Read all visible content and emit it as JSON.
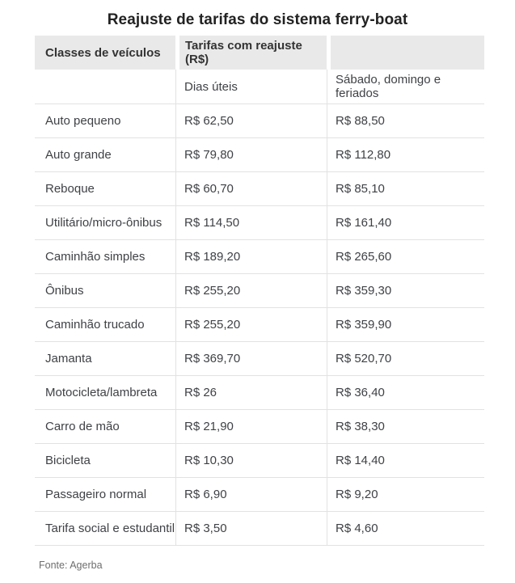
{
  "chart_data": {
    "type": "table",
    "title": "Reajuste de tarifas do sistema ferry-boat",
    "header": {
      "col1": "Classes de veículos",
      "col2": "Tarifas com reajuste (R$)",
      "col3": ""
    },
    "subheader": {
      "col1": "",
      "col2": "Dias úteis",
      "col3": "Sábado, domingo e feriados"
    },
    "columns": [
      "Classes de veículos",
      "Dias úteis",
      "Sábado, domingo e feriados"
    ],
    "rows": [
      {
        "vehicle": "Auto pequeno",
        "weekday": "R$ 62,50",
        "weekend": "R$ 88,50"
      },
      {
        "vehicle": "Auto grande",
        "weekday": "R$ 79,80",
        "weekend": "R$ 112,80"
      },
      {
        "vehicle": "Reboque",
        "weekday": "R$ 60,70",
        "weekend": "R$ 85,10"
      },
      {
        "vehicle": "Utilitário/micro-ônibus",
        "weekday": "R$ 114,50",
        "weekend": "R$ 161,40"
      },
      {
        "vehicle": "Caminhão simples",
        "weekday": "R$ 189,20",
        "weekend": "R$ 265,60"
      },
      {
        "vehicle": "Ônibus",
        "weekday": "R$ 255,20",
        "weekend": "R$ 359,30"
      },
      {
        "vehicle": "Caminhão trucado",
        "weekday": "R$ 255,20",
        "weekend": "R$ 359,90"
      },
      {
        "vehicle": "Jamanta",
        "weekday": "R$ 369,70",
        "weekend": "R$ 520,70"
      },
      {
        "vehicle": "Motocicleta/lambreta",
        "weekday": "R$ 26",
        "weekend": "R$ 36,40"
      },
      {
        "vehicle": "Carro de mão",
        "weekday": "R$ 21,90",
        "weekend": "R$ 38,30"
      },
      {
        "vehicle": "Bicicleta",
        "weekday": "R$ 10,30",
        "weekend": "R$ 14,40"
      },
      {
        "vehicle": "Passageiro normal",
        "weekday": "R$ 6,90",
        "weekend": "R$ 9,20"
      },
      {
        "vehicle": "Tarifa social e estudantil",
        "weekday": "R$ 3,50",
        "weekend": "R$ 4,60"
      }
    ],
    "source": "Fonte: Agerba",
    "currency": "R$",
    "layout": {
      "grid": "off",
      "legend": "none"
    }
  },
  "colors": {
    "background": "#ffffff",
    "header_bg": "#e9e9e9",
    "title_text": "#222222",
    "header_text": "#333333",
    "cell_text": "#3f4145",
    "divider": "#e2e2e2",
    "source_text": "#6e6e6e"
  }
}
